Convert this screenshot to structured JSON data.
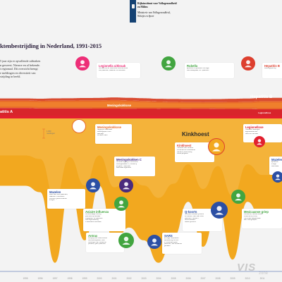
{
  "header": {
    "org_lines": [
      "Rijksinstituut voor Volksgezondheid",
      "en Milieu",
      "Ministerie van Volksgezondheid,",
      "Welzijn en Sport"
    ]
  },
  "title": "ktenbestrijding in Nederland, 1991-2015",
  "intro": [
    "5 jaar zijn er opvallende uitbraken",
    "n geweest. Nieuwe en al bekende.",
    "t regionaal. Dit overzicht brengt",
    "e meldingen en diversiteit van",
    "strijding in beeld."
  ],
  "colors": {
    "hepatitis_a": "#d8252b",
    "meningokokken": "#e86a2a",
    "kinkhoest": "#f2a81f",
    "legionella": "#e2202f",
    "hepatitis_b": "#dd3f2e",
    "background": "#f3f3f3",
    "baseline": "#2c4fa4"
  },
  "chart_data": {
    "type": "area",
    "title": "ktenbestrijding in Nederland, 1991-2015",
    "xlabel": "",
    "ylabel": "",
    "x": [
      1995,
      1996,
      1997,
      1998,
      1999,
      2000,
      2001,
      2002,
      2003,
      2004,
      2005,
      2006,
      2007,
      2008,
      2009,
      2010,
      2011
    ],
    "scale_marker": {
      "value": 1000,
      "label": "1.000 meldingen"
    },
    "series": [
      {
        "name": "Hepatitis A",
        "color": "#d8252b",
        "values": [
          1650,
          1560,
          1580,
          1560,
          1560,
          1530,
          1540,
          1510,
          1530,
          1520,
          1530,
          1500,
          1510,
          1480,
          1460,
          1440,
          1380
        ]
      },
      {
        "name": "Meningokokkose",
        "color": "#e86a2a",
        "values": [
          820,
          830,
          850,
          860,
          880,
          900,
          930,
          900,
          840,
          780,
          740,
          730,
          720,
          740,
          770,
          800,
          900
        ]
      },
      {
        "name": "Kinkhoest",
        "color": "#f2a81f",
        "values": [
          2100,
          2300,
          4500,
          2200,
          3800,
          2100,
          3900,
          3400,
          3800,
          4500,
          3700,
          2600,
          4000,
          2700,
          4400,
          2600,
          3200
        ]
      },
      {
        "name": "Legionellose",
        "color": "#e2202f",
        "values": [
          0,
          0,
          0,
          0,
          200,
          150,
          200,
          250,
          240,
          260,
          240,
          260,
          270,
          280,
          270,
          300,
          440
        ]
      },
      {
        "name": "Hepatitis B",
        "color": "#dd3f2e",
        "values": [
          1000,
          1000,
          1000,
          1000,
          1000,
          1000,
          1000,
          1000,
          1000,
          1000,
          1000,
          1000,
          1000,
          1000,
          1000,
          1000,
          1000
        ]
      }
    ],
    "band_labels": {
      "hepatitis_a": "atitis A",
      "meningokokkose": "Meningokokkose",
      "legionellose": "Legionellose",
      "hepatitis_b": "Hepatitis B",
      "kinkhoest": "Kinkhoest"
    }
  },
  "callouts": [
    {
      "key": "legionella-uitbraak",
      "title": "Legionella uitbraak",
      "color": "#ed2e77",
      "icon": "drop-icon",
      "icon_color": "#ed2e77",
      "lines": [
        "Uitbraak op de Westfriese bloemenshow",
        "188 patiënten, waarvan 32 overleden"
      ]
    },
    {
      "key": "rubella",
      "title": "Rubella",
      "color": "#42a540",
      "icon": "baby-icon",
      "icon_color": "#42a540",
      "lines": [
        "Epidemie in gebieden met lage",
        "vaccinatiegraad, 387 patiënten"
      ]
    },
    {
      "key": "hepatitis-b",
      "title": "Hepatitis B",
      "color": "#dd3f2e",
      "icon": "liver-icon",
      "icon_color": "#dd3f2e",
      "lines": [
        "Meldingsplichtig"
      ]
    },
    {
      "key": "meningokokkose",
      "title": "Meningokokkose",
      "color": "#e86a2a",
      "icon": "bacteria-icon",
      "icon_color": "#ffffff",
      "lines": [
        "Stijging in Nederland",
        "Meldingsplicht voor",
        "wachttijd",
        "ok alarm Meni"
      ]
    },
    {
      "key": "meningokokken-c",
      "title": "Meningokokken C",
      "color": "#4a2b7d",
      "icon": "person-icon",
      "icon_color": "#4a2b7d",
      "lines": [
        "Grootste stijging in 2001-2002",
        "meningokokken C, vooral bij",
        "jongeren. Nationale",
        "vaccinatie ingevoerd"
      ]
    },
    {
      "key": "kinkhoest",
      "title": "Kinkhoest",
      "color": "#dd3f2e",
      "icon": "cough-icon",
      "icon_color": "#f2a81f",
      "lines": [
        "Toename door afname",
        "immuniteit en veranderde",
        "bacterie (2008-2009);",
        "vooral jongeren"
      ]
    },
    {
      "key": "legionellose",
      "title": "Legionellose",
      "color": "#e2202f",
      "icon": "droplet-icon",
      "icon_color": "#e2202f",
      "lines": [
        "Toename meldingen",
        "legionellose door",
        "warm en nat weer"
      ]
    },
    {
      "key": "mazelen-left",
      "title": "Mazelen",
      "color": "#2c4fa4",
      "icon": "virus-icon",
      "icon_color": "#2c4fa4",
      "lines": [
        "Meer dan 3000 patiënten,",
        "waarvan 3 overleden",
        "Vooral in gereformeerde",
        "kringen"
      ]
    },
    {
      "key": "aviaire-influenza",
      "title": "Aviaire influenza",
      "color": "#42a540",
      "icon": "bird-icon",
      "icon_color": "#42a540",
      "lines": [
        "Grootschalige ruiming",
        "pluimvee bij uitbraak",
        "vogelgriep; 89 patiënten",
        "met oogontsteking",
        "1 dierenarts overleden"
      ]
    },
    {
      "key": "q-koorts",
      "title": "Q-koorts",
      "color": "#2c4fa4",
      "icon": "goat-icon",
      "icon_color": "#2c4fa4",
      "lines": [
        "Grootste uitbraak Q-koorts",
        "ter wereld; meer dan 4000",
        "patiënten, vooral in",
        "Noord-Brabant",
        "Geiten geruimd"
      ]
    },
    {
      "key": "mexicaanse-griep",
      "title": "Mexicaanse griep",
      "color": "#42a540",
      "icon": "pig-icon",
      "icon_color": "#42a540",
      "lines": [
        "Pandemie, nieuwe variant",
        "influenza A(H1N1)",
        "Vaccinatie aangeboden",
        "aan risicogroepen"
      ]
    },
    {
      "key": "mazelen-right",
      "title": "Mazelen",
      "color": "#2c4fa4",
      "icon": "virus-icon",
      "icon_color": "#2c4fa4",
      "lines": [
        "Epidemie",
        "in lage",
        "vaccinatie"
      ]
    },
    {
      "key": "antrax",
      "title": "Antrax",
      "color": "#42a540",
      "icon": "envelope-icon",
      "icon_color": "#42a540",
      "lines": [
        "Dreiging van bioterrorisme",
        "met antraxpoeder; veel",
        "meldingen van verdachte",
        "poeders, geen patiënten"
      ]
    },
    {
      "key": "sars",
      "title": "SARS",
      "color": "#2c4fa4",
      "icon": "mask-icon",
      "icon_color": "#2c4fa4",
      "lines": [
        "Ernstige respiratoire",
        "aandoening uit Azië",
        "In Nederland geen",
        "patiënten, wel verdachte",
        "gevallen"
      ]
    }
  ],
  "watermark": {
    "text": "VIS",
    "sub": "zone"
  }
}
